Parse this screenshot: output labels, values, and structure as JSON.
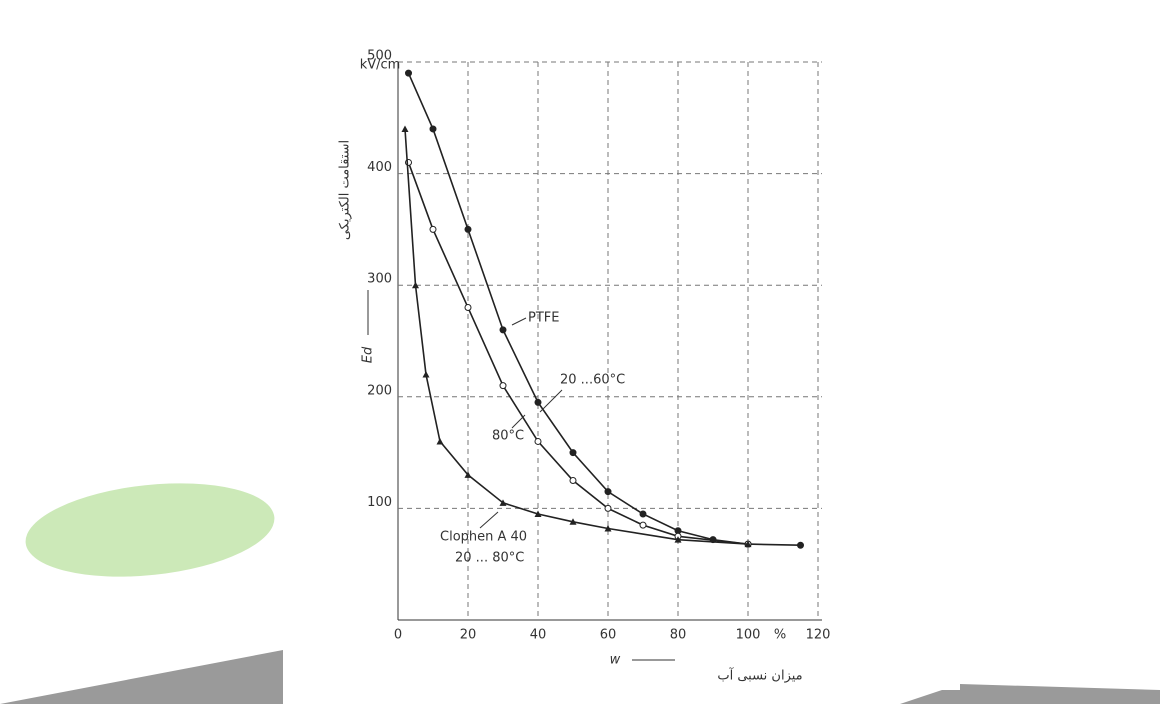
{
  "chart_data": {
    "type": "line",
    "y_label": "استقامت الکتریکی",
    "y_symbol": "Ed",
    "y_unit": "kV/cm",
    "x_label": "میزان نسبی آب",
    "x_symbol": "w",
    "x_unit": "%",
    "annotations": [
      "PTFE",
      "20 ...60°C",
      "80°C",
      "Clophen A 40",
      "20 ... 80°C"
    ],
    "xlim": [
      0,
      120
    ],
    "xticks": [
      0,
      20,
      40,
      60,
      80,
      100,
      120
    ],
    "ylim": [
      0,
      500
    ],
    "yticks": [
      100,
      200,
      300,
      400,
      500
    ],
    "grid": true,
    "series": [
      {
        "name": "PTFE 20...60°C",
        "color": "#222222",
        "marker": "circle",
        "x": [
          3,
          10,
          20,
          30,
          40,
          50,
          60,
          70,
          80,
          90,
          100,
          115
        ],
        "values": [
          490,
          440,
          350,
          260,
          195,
          150,
          115,
          95,
          80,
          72,
          68,
          67
        ]
      },
      {
        "name": "80°C",
        "color": "#222222",
        "marker": "open-circle",
        "x": [
          3,
          10,
          20,
          30,
          40,
          50,
          60,
          70,
          80,
          100
        ],
        "values": [
          410,
          350,
          280,
          210,
          160,
          125,
          100,
          85,
          75,
          68
        ]
      },
      {
        "name": "Clophen A 40 20...80°C",
        "color": "#222222",
        "marker": "triangle",
        "x": [
          2,
          5,
          8,
          12,
          20,
          30,
          40,
          50,
          60,
          80,
          100
        ],
        "values": [
          440,
          300,
          220,
          160,
          130,
          105,
          95,
          88,
          82,
          72,
          68
        ]
      }
    ]
  }
}
